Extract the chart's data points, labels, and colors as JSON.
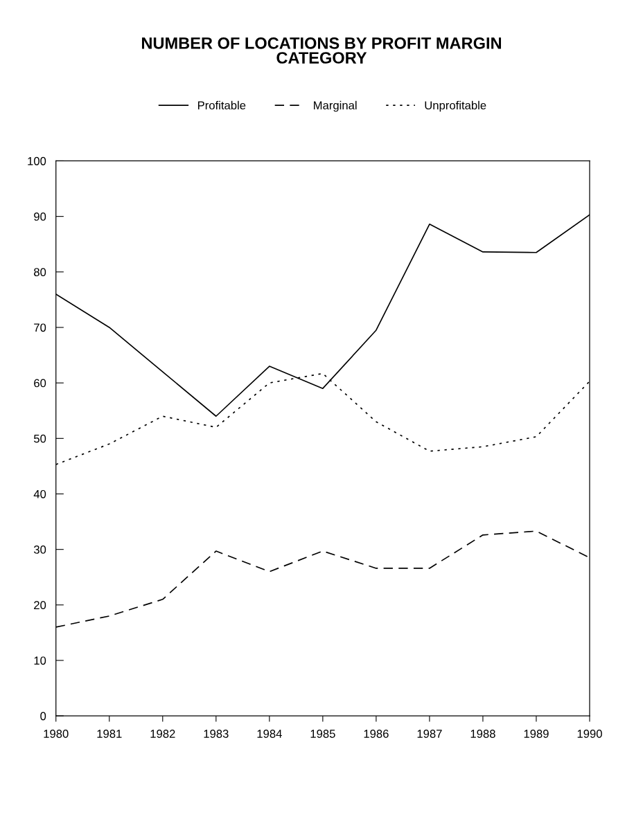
{
  "chart_data": {
    "type": "line",
    "title": "NUMBER OF LOCATIONS BY PROFIT MARGIN\nCATEGORY",
    "x": [
      1980,
      1981,
      1982,
      1983,
      1984,
      1985,
      1986,
      1987,
      1988,
      1989,
      1990
    ],
    "series": [
      {
        "name": "Profitable",
        "color": "#000000",
        "line_style": "solid",
        "values": [
          76,
          70,
          62,
          54,
          63,
          59,
          69.5,
          88.6,
          83.6,
          83.5,
          90.3
        ]
      },
      {
        "name": "Marginal",
        "color": "#000000",
        "line_style": "dashed",
        "values": [
          16,
          18,
          21,
          29.7,
          26,
          29.7,
          26.6,
          26.6,
          32.6,
          33.3,
          28.5
        ]
      },
      {
        "name": "Unprofitable",
        "color": "#000000",
        "line_style": "dotted",
        "values": [
          45.3,
          49,
          54,
          52,
          60,
          61.7,
          53,
          47.7,
          48.5,
          50.3,
          60.3
        ]
      }
    ],
    "xlim": [
      1980,
      1990
    ],
    "xticks": [
      1980,
      1981,
      1982,
      1983,
      1984,
      1985,
      1986,
      1987,
      1988,
      1989,
      1990
    ],
    "ylim": [
      0,
      100
    ],
    "yticks": [
      0,
      10,
      20,
      30,
      40,
      50,
      60,
      70,
      80,
      90,
      100
    ],
    "grid": false,
    "legend": "top",
    "marker": "none"
  }
}
